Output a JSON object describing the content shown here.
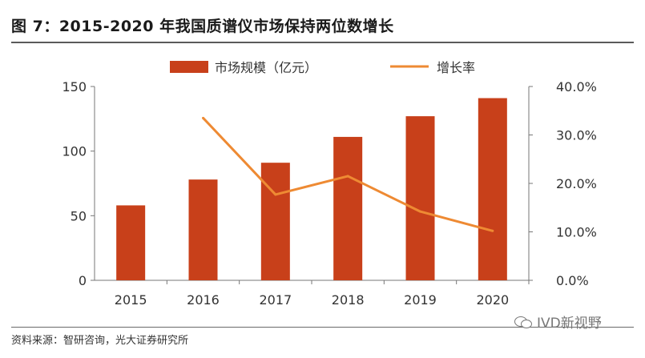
{
  "title": "图 7：2015-2020 年我国质谱仪市场保持两位数增长",
  "source": "资料来源：智研咨询，光大证券研究所",
  "watermark": "IVD新视野",
  "colors": {
    "bar": "#C8401A",
    "line": "#EE8A33"
  },
  "chart_data": {
    "type": "bar",
    "categories": [
      "2015",
      "2016",
      "2017",
      "2018",
      "2019",
      "2020"
    ],
    "series": [
      {
        "name": "市场规模（亿元）",
        "type": "bar",
        "axis": "left",
        "values": [
          58,
          78,
          91,
          111,
          127,
          141
        ]
      },
      {
        "name": "增长率",
        "type": "line",
        "axis": "right",
        "values": [
          null,
          0.335,
          0.177,
          0.215,
          0.142,
          0.102
        ]
      }
    ],
    "ylim_left": [
      0,
      150
    ],
    "yticks_left": [
      "0",
      "50",
      "100",
      "150"
    ],
    "ylim_right": [
      0,
      0.4
    ],
    "yticks_right": [
      "0.0%",
      "10.0%",
      "20.0%",
      "30.0%",
      "40.0%"
    ],
    "legend_position": "top-center",
    "grid": false
  }
}
